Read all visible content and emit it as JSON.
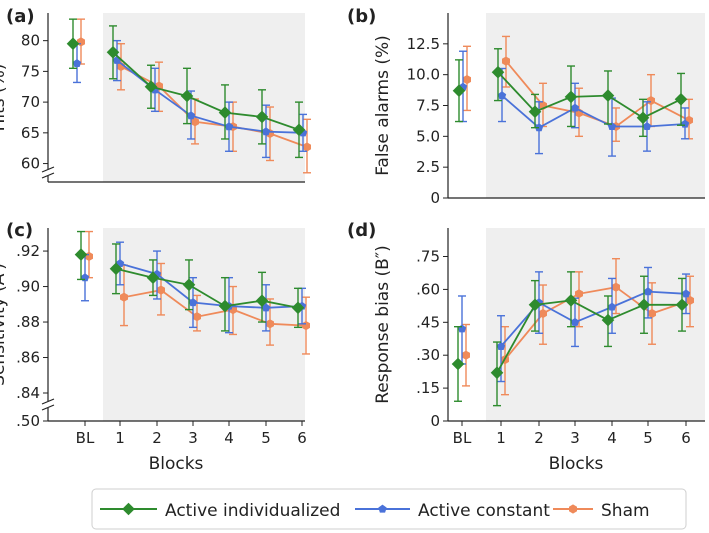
{
  "colors": {
    "individualized": "#2e8b2e",
    "constant": "#4a72d9",
    "sham": "#ef8a5a",
    "shade": "#efefef"
  },
  "legend": [
    {
      "label": "Active individualized",
      "series": "individualized",
      "marker": "diamond"
    },
    {
      "label": "Active constant",
      "series": "constant",
      "marker": "pentagon"
    },
    {
      "label": "Sham",
      "series": "sham",
      "marker": "hexagon"
    }
  ],
  "chart_data": [
    {
      "panel": "(a)",
      "type": "line",
      "ylabel": "Hits (%)",
      "xlabel": "",
      "categories": [
        "BL",
        "1",
        "2",
        "3",
        "4",
        "5",
        "6"
      ],
      "yticks": [
        "80",
        "75",
        "70",
        "65",
        "60"
      ],
      "ytick_values": [
        80,
        75,
        70,
        65,
        60
      ],
      "ylim": [
        57,
        84.5
      ],
      "axis_break": true,
      "show_xticks": false,
      "series": [
        {
          "name": "Active individualized",
          "key": "individualized",
          "values": [
            79.5,
            78.1,
            72.5,
            71.0,
            68.3,
            67.6,
            65.5
          ],
          "lower": [
            75.5,
            73.8,
            69.0,
            66.5,
            64.0,
            63.2,
            61.0
          ],
          "upper": [
            83.5,
            82.4,
            76.0,
            75.5,
            72.8,
            72.0,
            70.0
          ]
        },
        {
          "name": "Active constant",
          "key": "constant",
          "values": [
            76.3,
            76.8,
            72.0,
            67.8,
            66.0,
            65.2,
            65.0
          ],
          "lower": [
            73.2,
            73.5,
            68.5,
            64.0,
            62.0,
            61.0,
            62.0
          ],
          "upper": [
            79.5,
            80.0,
            75.5,
            71.8,
            70.0,
            69.5,
            68.0
          ]
        },
        {
          "name": "Sham",
          "key": "sham",
          "values": [
            79.8,
            75.8,
            72.6,
            66.8,
            66.0,
            64.9,
            62.7
          ],
          "lower": [
            76.2,
            72.0,
            68.5,
            63.2,
            62.0,
            60.5,
            58.5
          ],
          "upper": [
            83.5,
            79.5,
            76.5,
            70.5,
            70.0,
            69.2,
            67.2
          ]
        }
      ]
    },
    {
      "panel": "(b)",
      "type": "line",
      "ylabel": "False alarms (%)",
      "xlabel": "",
      "categories": [
        "BL",
        "1",
        "2",
        "3",
        "4",
        "5",
        "6"
      ],
      "yticks": [
        "12.5",
        "10.0",
        "7.5",
        "5.0",
        "2.5",
        "0"
      ],
      "ytick_values": [
        12.5,
        10.0,
        7.5,
        5.0,
        2.5,
        0
      ],
      "ylim": [
        0,
        15.0
      ],
      "axis_break": false,
      "show_xticks": false,
      "series": [
        {
          "name": "Active individualized",
          "key": "individualized",
          "values": [
            8.7,
            10.2,
            7.0,
            8.2,
            8.3,
            6.5,
            8.0
          ],
          "lower": [
            6.2,
            7.9,
            5.7,
            5.8,
            6.0,
            5.0,
            5.9
          ],
          "upper": [
            11.2,
            12.1,
            8.4,
            10.7,
            10.3,
            8.0,
            10.1
          ]
        },
        {
          "name": "Active constant",
          "key": "constant",
          "values": [
            9.0,
            8.3,
            5.7,
            7.3,
            5.8,
            5.8,
            6.0
          ],
          "lower": [
            6.2,
            6.2,
            3.6,
            5.7,
            3.4,
            3.8,
            4.8
          ],
          "upper": [
            11.9,
            10.5,
            7.8,
            9.3,
            8.1,
            7.8,
            7.3
          ]
        },
        {
          "name": "Sham",
          "key": "sham",
          "values": [
            9.6,
            11.1,
            7.5,
            6.9,
            5.8,
            7.9,
            6.3
          ],
          "lower": [
            7.1,
            9.0,
            5.8,
            5.0,
            4.6,
            5.8,
            4.8
          ],
          "upper": [
            12.3,
            13.1,
            9.3,
            8.9,
            7.3,
            10.0,
            8.0
          ]
        }
      ]
    },
    {
      "panel": "(c)",
      "type": "line",
      "ylabel": "Sensitivity (A′)",
      "xlabel": "",
      "categories": [
        "BL",
        "1",
        "2",
        "3",
        "4",
        "5",
        "6"
      ],
      "yticks": [
        ".92",
        ".90",
        ".88",
        ".86",
        ".84",
        ".50"
      ],
      "ytick_values": [
        0.92,
        0.9,
        0.88,
        0.86,
        0.84,
        0.827
      ],
      "ylim": [
        0.827,
        0.933
      ],
      "axis_break": true,
      "show_xticks": true,
      "series": [
        {
          "name": "Active individualized",
          "key": "individualized",
          "values": [
            0.918,
            0.91,
            0.905,
            0.901,
            0.889,
            0.892,
            0.888
          ],
          "lower": [
            0.904,
            0.896,
            0.895,
            0.887,
            0.875,
            0.88,
            0.877
          ],
          "upper": [
            0.931,
            0.924,
            0.915,
            0.915,
            0.905,
            0.908,
            0.899
          ]
        },
        {
          "name": "Active constant",
          "key": "constant",
          "values": [
            0.905,
            0.913,
            0.907,
            0.891,
            0.889,
            0.888,
            0.889
          ],
          "lower": [
            0.892,
            0.901,
            0.893,
            0.877,
            0.874,
            0.875,
            0.879
          ],
          "upper": [
            0.918,
            0.925,
            0.92,
            0.905,
            0.905,
            0.901,
            0.899
          ]
        },
        {
          "name": "Sham",
          "key": "sham",
          "values": [
            0.917,
            0.894,
            0.898,
            0.883,
            0.887,
            0.879,
            0.878
          ],
          "lower": [
            0.905,
            0.878,
            0.884,
            0.875,
            0.873,
            0.867,
            0.862
          ],
          "upper": [
            0.931,
            0.912,
            0.913,
            0.895,
            0.9,
            0.893,
            0.894
          ]
        }
      ]
    },
    {
      "panel": "(d)",
      "type": "line",
      "ylabel": "Response bias (B″)",
      "xlabel": "",
      "categories": [
        "BL",
        "1",
        "2",
        "3",
        "4",
        "5",
        "6"
      ],
      "yticks": [
        ".75",
        ".60",
        ".45",
        ".30",
        ".15",
        "0"
      ],
      "ytick_values": [
        0.75,
        0.6,
        0.45,
        0.3,
        0.15,
        0
      ],
      "ylim": [
        0,
        0.88
      ],
      "axis_break": false,
      "show_xticks": true,
      "series": [
        {
          "name": "Active individualized",
          "key": "individualized",
          "values": [
            0.26,
            0.22,
            0.53,
            0.55,
            0.46,
            0.53,
            0.53
          ],
          "lower": [
            0.09,
            0.07,
            0.41,
            0.43,
            0.34,
            0.4,
            0.41
          ],
          "upper": [
            0.43,
            0.36,
            0.64,
            0.68,
            0.57,
            0.66,
            0.65
          ]
        },
        {
          "name": "Active constant",
          "key": "constant",
          "values": [
            0.42,
            0.34,
            0.54,
            0.45,
            0.52,
            0.59,
            0.58
          ],
          "lower": [
            0.26,
            0.18,
            0.4,
            0.34,
            0.4,
            0.47,
            0.49
          ],
          "upper": [
            0.57,
            0.48,
            0.68,
            0.56,
            0.65,
            0.7,
            0.67
          ]
        },
        {
          "name": "Sham",
          "key": "sham",
          "values": [
            0.3,
            0.28,
            0.49,
            0.58,
            0.61,
            0.49,
            0.55
          ],
          "lower": [
            0.16,
            0.12,
            0.35,
            0.43,
            0.49,
            0.35,
            0.43
          ],
          "upper": [
            0.44,
            0.43,
            0.62,
            0.68,
            0.74,
            0.63,
            0.66
          ]
        }
      ]
    }
  ],
  "xlabels": {
    "left": "Blocks",
    "right": "Blocks"
  }
}
